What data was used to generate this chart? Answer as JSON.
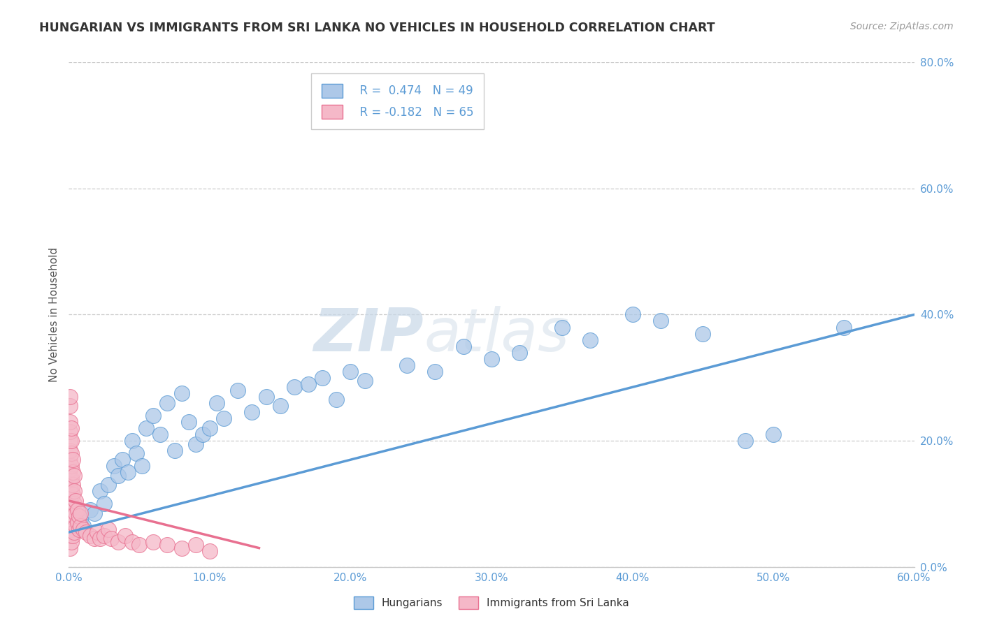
{
  "title": "HUNGARIAN VS IMMIGRANTS FROM SRI LANKA NO VEHICLES IN HOUSEHOLD CORRELATION CHART",
  "source": "Source: ZipAtlas.com",
  "xlim": [
    0.0,
    0.6
  ],
  "ylim": [
    0.0,
    0.8
  ],
  "legend_r1": "R =  0.474",
  "legend_n1": "N = 49",
  "legend_r2": "R = -0.182",
  "legend_n2": "N = 65",
  "ylabel": "No Vehicles in Household",
  "watermark_zip": "ZIP",
  "watermark_atlas": "atlas",
  "blue_color": "#adc8e8",
  "pink_color": "#f5b8c8",
  "blue_edge_color": "#5b9bd5",
  "pink_edge_color": "#e87090",
  "blue_scatter": [
    [
      0.008,
      0.075
    ],
    [
      0.01,
      0.065
    ],
    [
      0.015,
      0.09
    ],
    [
      0.018,
      0.085
    ],
    [
      0.022,
      0.12
    ],
    [
      0.025,
      0.1
    ],
    [
      0.028,
      0.13
    ],
    [
      0.032,
      0.16
    ],
    [
      0.035,
      0.145
    ],
    [
      0.038,
      0.17
    ],
    [
      0.042,
      0.15
    ],
    [
      0.045,
      0.2
    ],
    [
      0.048,
      0.18
    ],
    [
      0.052,
      0.16
    ],
    [
      0.055,
      0.22
    ],
    [
      0.06,
      0.24
    ],
    [
      0.065,
      0.21
    ],
    [
      0.07,
      0.26
    ],
    [
      0.075,
      0.185
    ],
    [
      0.08,
      0.275
    ],
    [
      0.085,
      0.23
    ],
    [
      0.09,
      0.195
    ],
    [
      0.095,
      0.21
    ],
    [
      0.1,
      0.22
    ],
    [
      0.105,
      0.26
    ],
    [
      0.11,
      0.235
    ],
    [
      0.12,
      0.28
    ],
    [
      0.13,
      0.245
    ],
    [
      0.14,
      0.27
    ],
    [
      0.15,
      0.255
    ],
    [
      0.16,
      0.285
    ],
    [
      0.17,
      0.29
    ],
    [
      0.18,
      0.3
    ],
    [
      0.19,
      0.265
    ],
    [
      0.2,
      0.31
    ],
    [
      0.21,
      0.295
    ],
    [
      0.24,
      0.32
    ],
    [
      0.26,
      0.31
    ],
    [
      0.28,
      0.35
    ],
    [
      0.3,
      0.33
    ],
    [
      0.32,
      0.34
    ],
    [
      0.35,
      0.38
    ],
    [
      0.37,
      0.36
    ],
    [
      0.4,
      0.4
    ],
    [
      0.42,
      0.39
    ],
    [
      0.45,
      0.37
    ],
    [
      0.48,
      0.2
    ],
    [
      0.5,
      0.21
    ],
    [
      0.55,
      0.38
    ]
  ],
  "pink_scatter": [
    [
      0.001,
      0.03
    ],
    [
      0.001,
      0.05
    ],
    [
      0.001,
      0.065
    ],
    [
      0.001,
      0.08
    ],
    [
      0.001,
      0.095
    ],
    [
      0.001,
      0.11
    ],
    [
      0.001,
      0.125
    ],
    [
      0.001,
      0.14
    ],
    [
      0.001,
      0.155
    ],
    [
      0.001,
      0.17
    ],
    [
      0.001,
      0.185
    ],
    [
      0.001,
      0.2
    ],
    [
      0.001,
      0.215
    ],
    [
      0.001,
      0.23
    ],
    [
      0.001,
      0.255
    ],
    [
      0.001,
      0.27
    ],
    [
      0.002,
      0.04
    ],
    [
      0.002,
      0.06
    ],
    [
      0.002,
      0.08
    ],
    [
      0.002,
      0.1
    ],
    [
      0.002,
      0.12
    ],
    [
      0.002,
      0.14
    ],
    [
      0.002,
      0.16
    ],
    [
      0.002,
      0.18
    ],
    [
      0.002,
      0.2
    ],
    [
      0.002,
      0.22
    ],
    [
      0.003,
      0.05
    ],
    [
      0.003,
      0.075
    ],
    [
      0.003,
      0.095
    ],
    [
      0.003,
      0.115
    ],
    [
      0.003,
      0.13
    ],
    [
      0.003,
      0.15
    ],
    [
      0.003,
      0.17
    ],
    [
      0.004,
      0.055
    ],
    [
      0.004,
      0.08
    ],
    [
      0.004,
      0.1
    ],
    [
      0.004,
      0.12
    ],
    [
      0.004,
      0.145
    ],
    [
      0.005,
      0.065
    ],
    [
      0.005,
      0.085
    ],
    [
      0.005,
      0.105
    ],
    [
      0.006,
      0.07
    ],
    [
      0.006,
      0.09
    ],
    [
      0.007,
      0.06
    ],
    [
      0.007,
      0.08
    ],
    [
      0.008,
      0.065
    ],
    [
      0.008,
      0.085
    ],
    [
      0.01,
      0.06
    ],
    [
      0.012,
      0.055
    ],
    [
      0.015,
      0.05
    ],
    [
      0.018,
      0.045
    ],
    [
      0.02,
      0.055
    ],
    [
      0.022,
      0.045
    ],
    [
      0.025,
      0.05
    ],
    [
      0.028,
      0.06
    ],
    [
      0.03,
      0.045
    ],
    [
      0.035,
      0.04
    ],
    [
      0.04,
      0.05
    ],
    [
      0.045,
      0.04
    ],
    [
      0.05,
      0.035
    ],
    [
      0.06,
      0.04
    ],
    [
      0.07,
      0.035
    ],
    [
      0.08,
      0.03
    ],
    [
      0.09,
      0.035
    ],
    [
      0.1,
      0.025
    ]
  ],
  "blue_trendline": [
    [
      0.0,
      0.055
    ],
    [
      0.6,
      0.4
    ]
  ],
  "pink_trendline": [
    [
      0.0,
      0.105
    ],
    [
      0.135,
      0.03
    ]
  ]
}
